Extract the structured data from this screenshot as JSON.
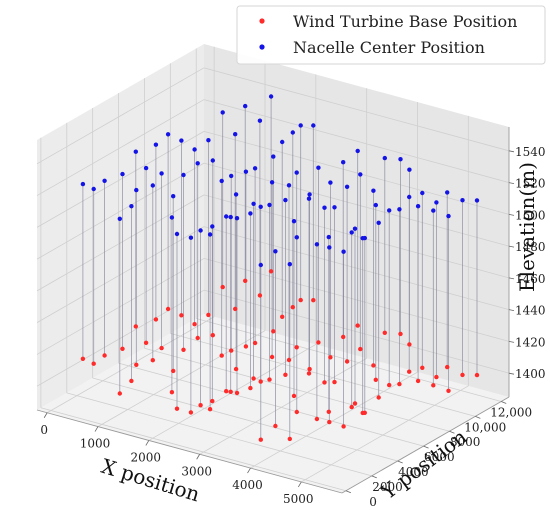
{
  "chart_data": {
    "type": "scatter",
    "projection": "3d",
    "xlabel": "X position",
    "ylabel": "Y position",
    "zlabel": "Elevation(m)",
    "xlim": [
      -200,
      5800
    ],
    "ylim": [
      -300,
      12600
    ],
    "zlim": [
      1385,
      1555
    ],
    "x_ticks": [
      "0",
      "1000",
      "2000",
      "3000",
      "4000",
      "5000"
    ],
    "x_tick_values": [
      0,
      1000,
      2000,
      3000,
      4000,
      5000
    ],
    "y_ticks": [
      "0",
      "2000",
      "4000",
      "6000",
      "8000",
      "10,000",
      "12,000"
    ],
    "y_tick_values": [
      0,
      2000,
      4000,
      6000,
      8000,
      10000,
      12000
    ],
    "z_ticks": [
      "1400",
      "1420",
      "1440",
      "1460",
      "1480",
      "1500",
      "1520",
      "1540"
    ],
    "z_tick_values": [
      1400,
      1420,
      1440,
      1460,
      1480,
      1500,
      1520,
      1540
    ],
    "legend_position": "top-right",
    "grid": true,
    "series": [
      {
        "name": "Wind Turbine Base Position",
        "color": "#ff2a2a"
      },
      {
        "name": "Nacelle Center Position",
        "color": "#1414e6"
      }
    ],
    "stem_color": "#8a8aa0",
    "hub_height": 110,
    "groups": [
      {
        "x": [
          500,
          1300
        ],
        "y": [
          500,
          12000
        ],
        "n": 16,
        "z": [
          1412,
          1432
        ]
      },
      {
        "x": [
          1300,
          2300
        ],
        "y": [
          0,
          11500
        ],
        "n": 18,
        "z": [
          1405,
          1425
        ]
      },
      {
        "x": [
          2300,
          3200
        ],
        "y": [
          0,
          11000
        ],
        "n": 17,
        "z": [
          1398,
          1418
        ]
      },
      {
        "x": [
          3100,
          4200
        ],
        "y": [
          500,
          11500
        ],
        "n": 16,
        "z": [
          1402,
          1422
        ]
      },
      {
        "x": [
          4100,
          5100
        ],
        "y": [
          0,
          10500
        ],
        "n": 15,
        "z": [
          1392,
          1415
        ]
      },
      {
        "x": [
          4500,
          5500
        ],
        "y": [
          4000,
          11500
        ],
        "n": 10,
        "z": [
          1396,
          1418
        ]
      }
    ]
  }
}
